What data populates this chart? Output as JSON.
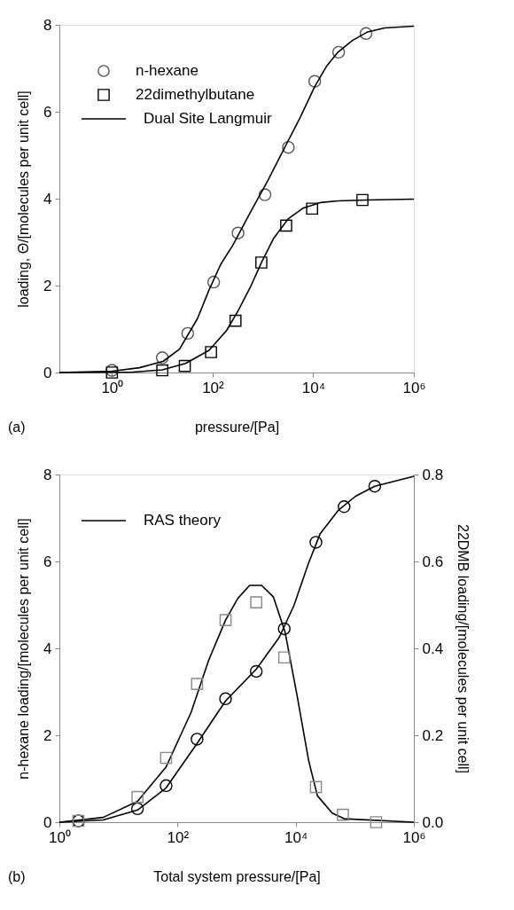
{
  "chart_data": [
    {
      "type": "scatter",
      "xlabel": "pressure/[Pa]",
      "ylabel": "loading, Θ/[molecules per unit cell]",
      "log": "x",
      "grid": false,
      "legend": "top left",
      "xlim": [
        0.09,
        1000000
      ],
      "xticks": [
        {
          "value": 1,
          "label": "10⁰"
        },
        {
          "value": 100,
          "label": "10²"
        },
        {
          "value": 10000,
          "label": "10⁴"
        },
        {
          "value": 1000000,
          "label": "10⁶"
        }
      ],
      "ylim": [
        0,
        8
      ],
      "yticks": [
        0,
        2,
        4,
        6,
        8
      ],
      "annotations": [
        "(a)"
      ],
      "series": [
        {
          "name": "n-hexane",
          "marker": "circle",
          "color": "#555555",
          "x": [
            1,
            10,
            32,
            105,
            320,
            1100,
            3200,
            10700,
            32000,
            112000
          ],
          "values": [
            0.05,
            0.34,
            0.9,
            2.08,
            3.21,
            4.09,
            5.18,
            6.7,
            7.37,
            7.8
          ]
        },
        {
          "name": "22dimethylbutane",
          "marker": "square",
          "color": "#000000",
          "x": [
            1,
            10,
            28,
            93,
            285,
            930,
            2900,
            9500,
            95000
          ],
          "values": [
            0,
            0.05,
            0.15,
            0.47,
            1.19,
            2.53,
            3.38,
            3.77,
            3.97
          ]
        },
        {
          "name": "Dual Site Langmuir",
          "type": "line",
          "marker": "none",
          "color": "#000000",
          "x": [
            0.09,
            1,
            3.5,
            10.5,
            22,
            50,
            85,
            145,
            250,
            560,
            1230,
            2750,
            5400,
            10700,
            18200,
            31000,
            60000,
            117000,
            263000,
            1000000
          ],
          "values": [
            0,
            0.03,
            0.11,
            0.26,
            0.54,
            1.24,
            1.9,
            2.49,
            2.92,
            3.68,
            4.4,
            5.19,
            5.85,
            6.58,
            7.04,
            7.37,
            7.64,
            7.83,
            7.93,
            7.97
          ]
        },
        {
          "type": "line",
          "marker": "none",
          "color": "#000000",
          "x": [
            0.09,
            2.6,
            10,
            29,
            85,
            190,
            325,
            560,
            950,
            1620,
            3200,
            6200,
            13800,
            31000,
            117000,
            1000000
          ],
          "values": [
            0,
            0.01,
            0.06,
            0.21,
            0.51,
            0.97,
            1.43,
            1.96,
            2.55,
            3.08,
            3.54,
            3.78,
            3.91,
            3.95,
            3.97,
            3.99
          ]
        }
      ]
    },
    {
      "type": "scatter",
      "xlabel": "Total system pressure/[Pa]",
      "ylabel": "n-hexane loading/[molecules per unit cell]",
      "y2label": "22DMB loading/[molecules per unit cell]",
      "log": "x",
      "grid": false,
      "legend": "top left",
      "xlim": [
        1,
        1000000
      ],
      "xticks": [
        {
          "value": 1,
          "label": "10⁰"
        },
        {
          "value": 100,
          "label": "10²"
        },
        {
          "value": 10000,
          "label": "10⁴"
        },
        {
          "value": 1000000,
          "label": "10⁶"
        }
      ],
      "ylim": [
        0,
        8
      ],
      "yticks": [
        0,
        2,
        4,
        6,
        8
      ],
      "y2lim": [
        0,
        0.8
      ],
      "y2ticks": [
        {
          "value": 0,
          "label": "0.0"
        },
        0.2,
        0.4,
        0.6,
        0.8
      ],
      "annotations": [
        "(b)"
      ],
      "series": [
        {
          "name": "RAS theory",
          "type": "line",
          "marker": "none",
          "color": "#000000",
          "x": [
            1,
            5.5,
            21,
            64,
            214,
            650,
            2150,
            5250,
            9300,
            16600,
            26000,
            52000,
            103000,
            218000,
            1000000
          ],
          "values": [
            0,
            0.05,
            0.28,
            0.79,
            1.81,
            2.79,
            3.52,
            4.25,
            4.98,
            5.97,
            6.64,
            7.17,
            7.5,
            7.73,
            7.96
          ]
        },
        {
          "marker": "circle",
          "color": "#000000",
          "x": [
            2.1,
            21,
            64,
            214,
            650,
            2150,
            6400,
            22000,
            66000,
            218000
          ],
          "values": [
            0.03,
            0.31,
            0.84,
            1.91,
            2.84,
            3.47,
            4.45,
            6.44,
            7.26,
            7.73
          ]
        },
        {
          "type": "line",
          "axis": "y2",
          "marker": "none",
          "color": "#000000",
          "x": [
            1,
            5.5,
            21,
            64,
            170,
            335,
            650,
            1050,
            1660,
            2650,
            4200,
            6600,
            10500,
            16600,
            23300,
            41500,
            66000,
            1000000
          ],
          "values": [
            0,
            0.011,
            0.048,
            0.127,
            0.253,
            0.372,
            0.465,
            0.515,
            0.545,
            0.545,
            0.518,
            0.438,
            0.293,
            0.141,
            0.061,
            0.021,
            0.008,
            0
          ]
        },
        {
          "axis": "y2",
          "marker": "square",
          "color": "#888888",
          "x": [
            2.1,
            21,
            64,
            214,
            650,
            2150,
            6400,
            22000,
            63000,
            230000
          ],
          "values": [
            0.003,
            0.058,
            0.148,
            0.318,
            0.465,
            0.506,
            0.379,
            0.081,
            0.017,
            0
          ]
        }
      ]
    }
  ]
}
